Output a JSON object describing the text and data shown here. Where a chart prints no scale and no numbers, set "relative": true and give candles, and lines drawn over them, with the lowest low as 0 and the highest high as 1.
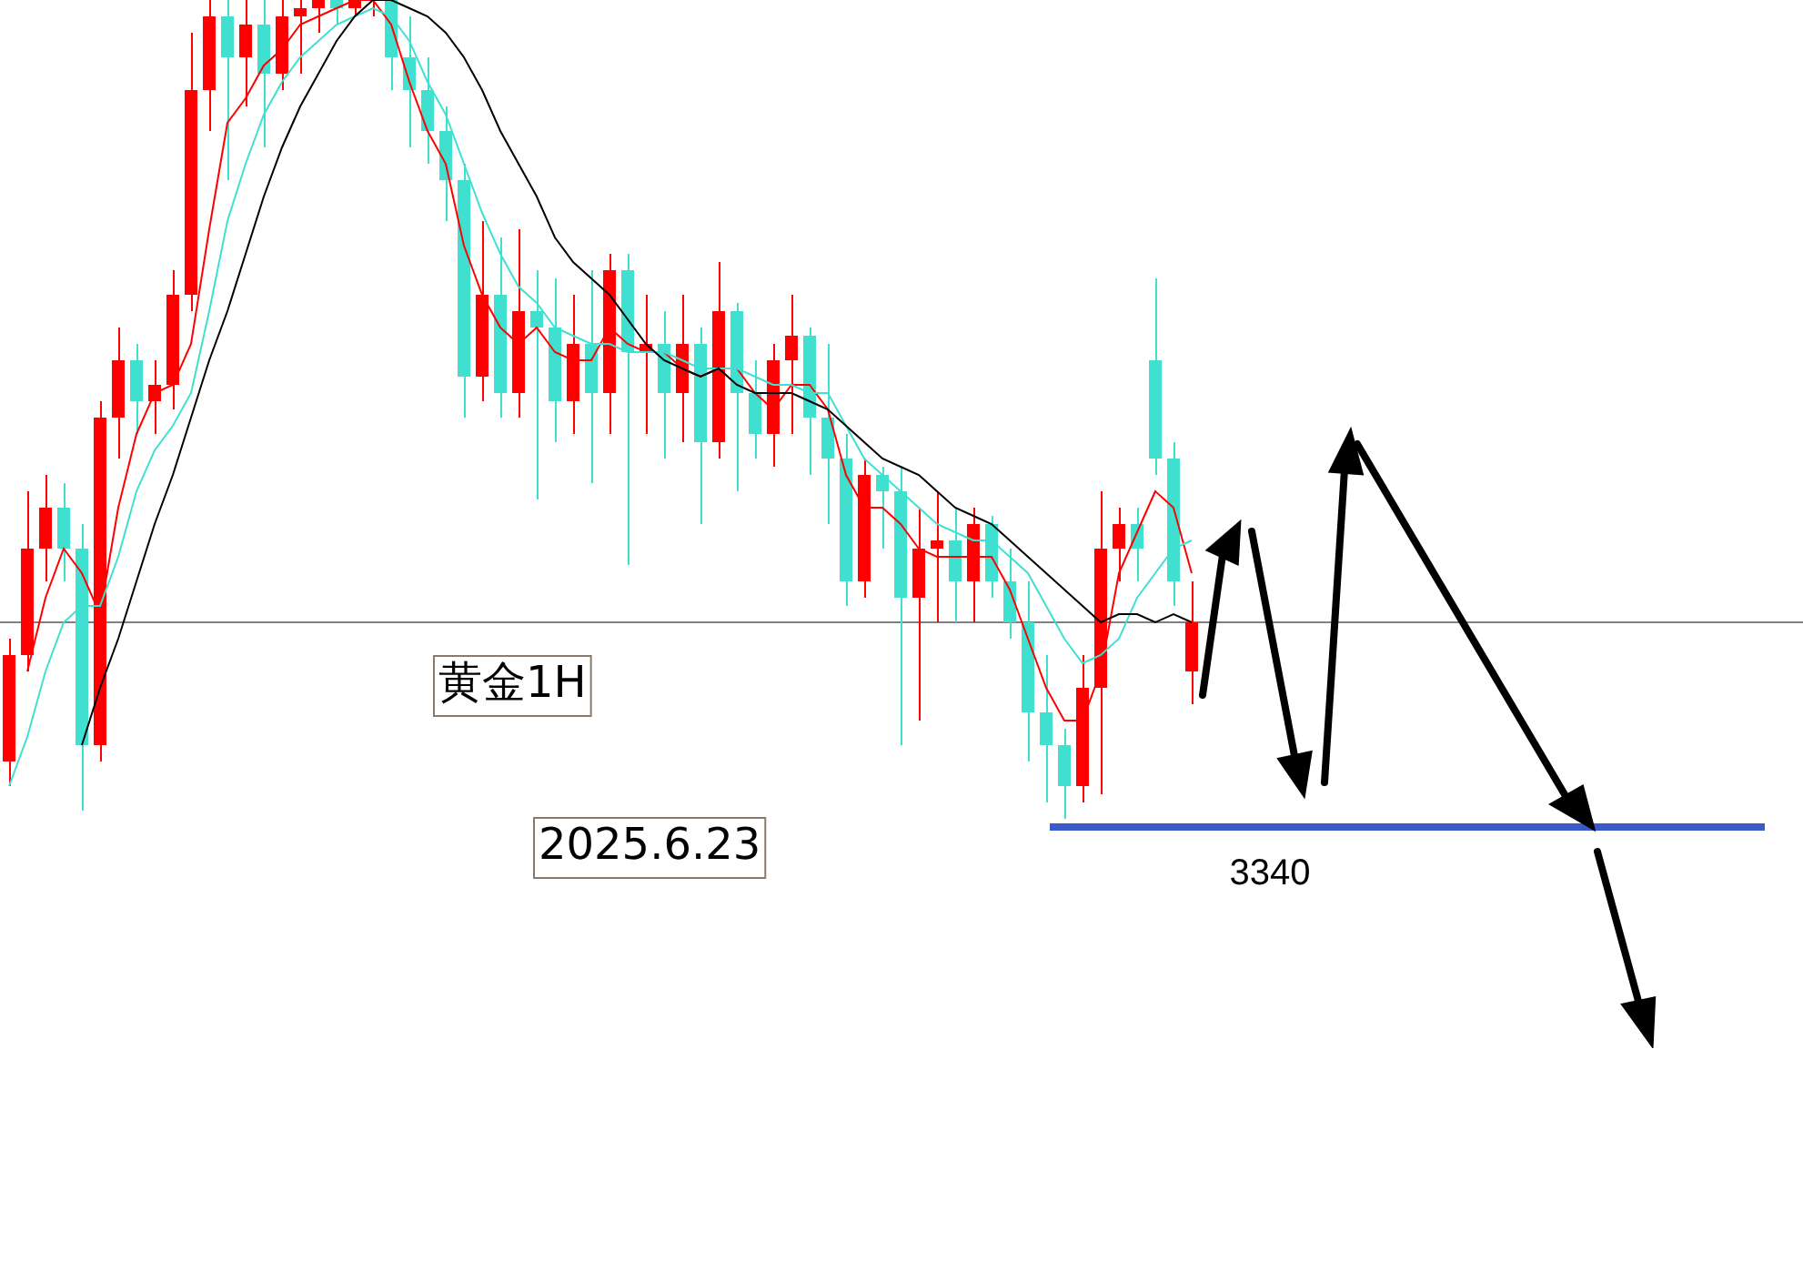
{
  "chart_data": {
    "type": "candlestick",
    "title": "黄金1H",
    "relative": true,
    "categories": [
      null,
      null,
      null,
      null,
      null,
      null,
      null,
      null,
      null,
      null,
      null,
      null,
      null,
      null,
      null,
      null,
      null,
      null,
      null,
      null,
      null,
      null,
      null,
      null,
      null,
      null,
      null,
      null,
      null,
      null,
      null,
      null,
      null,
      null,
      null,
      null,
      null,
      null,
      null,
      null,
      null,
      null,
      null,
      null,
      null,
      null,
      null,
      null,
      null,
      null,
      null,
      null,
      null,
      null,
      null,
      null,
      null,
      null,
      null,
      null,
      null,
      null,
      null,
      null,
      null,
      null
    ],
    "ohlc": [
      [
        0.07,
        0.22,
        0.04,
        0.2
      ],
      [
        0.2,
        0.4,
        0.18,
        0.33
      ],
      [
        0.33,
        0.42,
        0.29,
        0.38
      ],
      [
        0.38,
        0.41,
        0.29,
        0.33
      ],
      [
        0.33,
        0.36,
        0.01,
        0.09
      ],
      [
        0.09,
        0.51,
        0.07,
        0.49
      ],
      [
        0.49,
        0.6,
        0.44,
        0.56
      ],
      [
        0.56,
        0.58,
        0.47,
        0.51
      ],
      [
        0.51,
        0.56,
        0.47,
        0.53
      ],
      [
        0.53,
        0.67,
        0.5,
        0.64
      ],
      [
        0.64,
        0.96,
        0.62,
        0.89
      ],
      [
        0.89,
        1,
        0.84,
        0.98
      ],
      [
        0.98,
        1,
        0.78,
        0.93
      ],
      [
        0.93,
        1,
        0.87,
        0.97
      ],
      [
        0.97,
        1,
        0.82,
        0.91
      ],
      [
        0.91,
        1,
        0.89,
        0.98
      ],
      [
        0.98,
        1,
        0.91,
        0.99
      ],
      [
        0.99,
        1,
        0.96,
        1
      ],
      [
        1,
        1,
        0.97,
        0.99
      ],
      [
        0.99,
        1,
        0.98,
        1
      ],
      [
        1,
        1,
        0.98,
        1
      ],
      [
        1,
        1,
        0.89,
        0.93
      ],
      [
        0.93,
        0.98,
        0.82,
        0.89
      ],
      [
        0.89,
        0.93,
        0.8,
        0.84
      ],
      [
        0.84,
        0.87,
        0.73,
        0.78
      ],
      [
        0.78,
        0.8,
        0.49,
        0.54
      ],
      [
        0.54,
        0.73,
        0.51,
        0.64
      ],
      [
        0.64,
        0.71,
        0.49,
        0.52
      ],
      [
        0.52,
        0.72,
        0.49,
        0.62
      ],
      [
        0.62,
        0.67,
        0.39,
        0.6
      ],
      [
        0.6,
        0.66,
        0.46,
        0.51
      ],
      [
        0.51,
        0.64,
        0.47,
        0.58
      ],
      [
        0.58,
        0.67,
        0.41,
        0.52
      ],
      [
        0.52,
        0.69,
        0.47,
        0.67
      ],
      [
        0.67,
        0.69,
        0.31,
        0.57
      ],
      [
        0.57,
        0.64,
        0.47,
        0.58
      ],
      [
        0.58,
        0.62,
        0.44,
        0.52
      ],
      [
        0.52,
        0.64,
        0.46,
        0.58
      ],
      [
        0.58,
        0.6,
        0.36,
        0.46
      ],
      [
        0.46,
        0.68,
        0.44,
        0.62
      ],
      [
        0.62,
        0.63,
        0.4,
        0.52
      ],
      [
        0.52,
        0.56,
        0.44,
        0.47
      ],
      [
        0.47,
        0.58,
        0.43,
        0.56
      ],
      [
        0.56,
        0.64,
        0.47,
        0.59
      ],
      [
        0.59,
        0.6,
        0.42,
        0.49
      ],
      [
        0.49,
        0.58,
        0.36,
        0.44
      ],
      [
        0.44,
        0.47,
        0.26,
        0.29
      ],
      [
        0.29,
        0.44,
        0.27,
        0.42
      ],
      [
        0.42,
        0.43,
        0.33,
        0.4
      ],
      [
        0.4,
        0.43,
        0.09,
        0.27
      ],
      [
        0.27,
        0.38,
        0.12,
        0.33
      ],
      [
        0.33,
        0.4,
        0.24,
        0.34
      ],
      [
        0.34,
        0.38,
        0.24,
        0.29
      ],
      [
        0.29,
        0.38,
        0.24,
        0.36
      ],
      [
        0.36,
        0.37,
        0.27,
        0.29
      ],
      [
        0.29,
        0.33,
        0.22,
        0.24
      ],
      [
        0.24,
        0.29,
        0.07,
        0.13
      ],
      [
        0.13,
        0.2,
        0.02,
        0.09
      ],
      [
        0.09,
        0.11,
        0,
        0.04
      ],
      [
        0.04,
        0.2,
        0.02,
        0.16
      ],
      [
        0.16,
        0.4,
        0.03,
        0.33
      ],
      [
        0.33,
        0.38,
        0.29,
        0.36
      ],
      [
        0.36,
        0.38,
        0.29,
        0.33
      ],
      [
        0.56,
        0.66,
        0.42,
        0.44
      ],
      [
        0.44,
        0.46,
        0.26,
        0.29
      ],
      [
        0.18,
        0.29,
        0.14,
        0.24
      ]
    ],
    "colors": [
      "#ff0000",
      "#ff0000",
      "#ff0000",
      "#40e0d0",
      "#40e0d0",
      "#ff0000",
      "#ff0000",
      "#40e0d0",
      "#ff0000",
      "#ff0000",
      "#ff0000",
      "#ff0000",
      "#40e0d0",
      "#ff0000",
      "#40e0d0",
      "#ff0000",
      "#ff0000",
      "#ff0000",
      "#40e0d0",
      "#ff0000",
      "#ff0000",
      "#40e0d0",
      "#40e0d0",
      "#40e0d0",
      "#40e0d0",
      "#40e0d0",
      "#ff0000",
      "#40e0d0",
      "#ff0000",
      "#40e0d0",
      "#40e0d0",
      "#ff0000",
      "#40e0d0",
      "#ff0000",
      "#40e0d0",
      "#ff0000",
      "#40e0d0",
      "#ff0000",
      "#40e0d0",
      "#ff0000",
      "#40e0d0",
      "#40e0d0",
      "#ff0000",
      "#ff0000",
      "#40e0d0",
      "#40e0d0",
      "#40e0d0",
      "#ff0000",
      "#40e0d0",
      "#40e0d0",
      "#ff0000",
      "#ff0000",
      "#40e0d0",
      "#ff0000",
      "#40e0d0",
      "#40e0d0",
      "#40e0d0",
      "#40e0d0",
      "#40e0d0",
      "#ff0000",
      "#ff0000",
      "#ff0000",
      "#40e0d0",
      "#40e0d0",
      "#40e0d0",
      "#ff0000"
    ],
    "series": [
      {
        "type": "line",
        "color": "#000000",
        "values": [
          null,
          null,
          null,
          null,
          0.09,
          0.16,
          0.22,
          0.29,
          0.36,
          0.42,
          0.49,
          0.56,
          0.62,
          0.69,
          0.76,
          0.82,
          0.87,
          0.91,
          0.95,
          0.98,
          1,
          1,
          0.99,
          0.98,
          0.96,
          0.93,
          0.89,
          0.84,
          0.8,
          0.76,
          0.71,
          0.68,
          0.66,
          0.64,
          0.61,
          0.58,
          0.56,
          0.55,
          0.54,
          0.55,
          0.53,
          0.52,
          0.52,
          0.52,
          0.51,
          0.5,
          0.48,
          0.46,
          0.44,
          0.43,
          0.42,
          0.4,
          0.38,
          0.37,
          0.36,
          0.34,
          0.32,
          0.3,
          0.28,
          0.26,
          0.24,
          0.25,
          0.25,
          0.24,
          0.25,
          0.24
        ]
      },
      {
        "type": "line",
        "color": "#40e0d0",
        "values": [
          0.04,
          0.1,
          0.18,
          0.24,
          0.26,
          0.26,
          0.32,
          0.4,
          0.45,
          0.48,
          0.52,
          0.62,
          0.73,
          0.8,
          0.86,
          0.9,
          0.93,
          0.95,
          0.97,
          0.98,
          0.99,
          0.98,
          0.95,
          0.9,
          0.86,
          0.8,
          0.74,
          0.69,
          0.65,
          0.63,
          0.6,
          0.59,
          0.58,
          0.58,
          0.57,
          0.57,
          0.57,
          0.56,
          0.55,
          0.55,
          0.55,
          0.54,
          0.53,
          0.53,
          0.52,
          0.52,
          0.48,
          0.44,
          0.42,
          0.4,
          0.38,
          0.36,
          0.35,
          0.34,
          0.34,
          0.32,
          0.3,
          0.26,
          0.22,
          0.19,
          0.2,
          0.22,
          0.27,
          0.3,
          0.33,
          0.34
        ]
      },
      {
        "type": "line",
        "color": "#ff0000",
        "values": [
          null,
          0.18,
          0.27,
          0.33,
          0.3,
          0.25,
          0.38,
          0.47,
          0.52,
          0.53,
          0.58,
          0.72,
          0.85,
          0.88,
          0.92,
          0.94,
          0.97,
          0.98,
          0.99,
          1,
          1,
          0.97,
          0.9,
          0.84,
          0.8,
          0.7,
          0.64,
          0.6,
          0.58,
          0.6,
          0.57,
          0.56,
          0.56,
          0.6,
          0.58,
          0.57,
          0.57,
          0.55,
          0.54,
          0.55,
          0.55,
          0.52,
          0.5,
          0.53,
          0.53,
          0.5,
          0.42,
          0.38,
          0.38,
          0.36,
          0.33,
          0.32,
          0.32,
          0.32,
          0.32,
          0.28,
          0.22,
          0.16,
          0.12,
          0.12,
          0.18,
          0.3,
          0.35,
          0.4,
          0.38,
          0.3
        ]
      }
    ],
    "ref_lines": [
      {
        "axis": "y",
        "value": 0.24,
        "color": "#808080"
      },
      {
        "axis": "y",
        "value": -0.01,
        "color": "#3a5bc7",
        "line_style": "solid"
      }
    ],
    "annotations": [
      "2025.6.23",
      {
        "text": "3340",
        "y": -0.01
      }
    ]
  }
}
